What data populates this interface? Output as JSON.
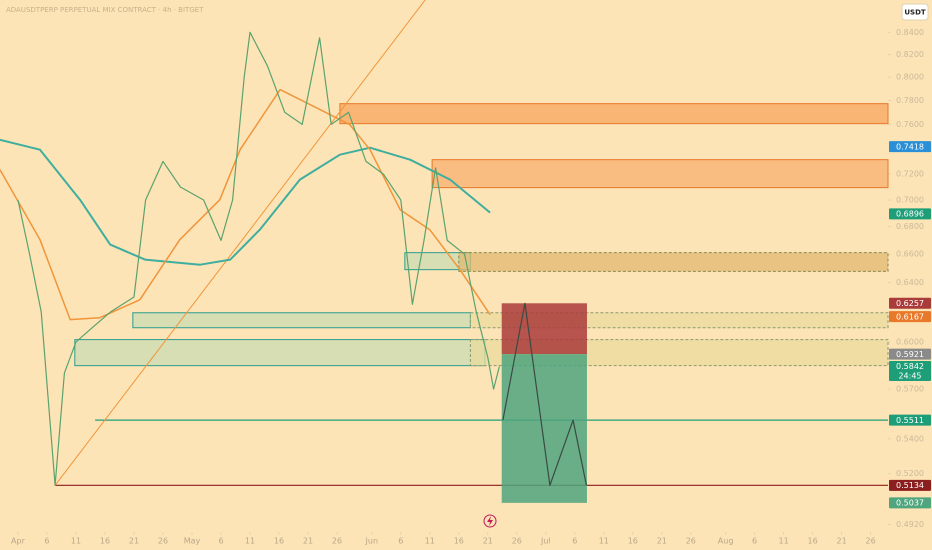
{
  "chart_data": {
    "type": "line",
    "title": "ADAUSDTPERP PERPETUAL MIX CONTRACT · 4h · BITGET",
    "currency": "USDT",
    "log": true,
    "xlim": [
      -3.1,
      150
    ],
    "ylim": [
      0.488,
      0.87
    ],
    "yticks": [
      {
        "value": 0.84,
        "label": "0.8400"
      },
      {
        "value": 0.82,
        "label": "0.8200"
      },
      {
        "value": 0.8,
        "label": "0.8000"
      },
      {
        "value": 0.78,
        "label": "0.7800"
      },
      {
        "value": 0.76,
        "label": "0.7600"
      },
      {
        "value": 0.72,
        "label": "0.7200"
      },
      {
        "value": 0.7,
        "label": "0.7000"
      },
      {
        "value": 0.68,
        "label": "0.6800"
      },
      {
        "value": 0.66,
        "label": "0.6600"
      },
      {
        "value": 0.64,
        "label": "0.6400"
      },
      {
        "value": 0.6,
        "label": "0.6000"
      },
      {
        "value": 0.57,
        "label": "0.5700"
      },
      {
        "value": 0.54,
        "label": "0.5400"
      },
      {
        "value": 0.52,
        "label": "0.5200"
      },
      {
        "value": 0.492,
        "label": "0.4920"
      }
    ],
    "xticks": [
      {
        "value": 0,
        "label": "Apr"
      },
      {
        "value": 5,
        "label": "6"
      },
      {
        "value": 10,
        "label": "11"
      },
      {
        "value": 15,
        "label": "16"
      },
      {
        "value": 20,
        "label": "21"
      },
      {
        "value": 25,
        "label": "26"
      },
      {
        "value": 30,
        "label": "May"
      },
      {
        "value": 35,
        "label": "6"
      },
      {
        "value": 40,
        "label": "11"
      },
      {
        "value": 45,
        "label": "16"
      },
      {
        "value": 50,
        "label": "21"
      },
      {
        "value": 55,
        "label": "26"
      },
      {
        "value": 61,
        "label": "Jun"
      },
      {
        "value": 66,
        "label": "6"
      },
      {
        "value": 71,
        "label": "11"
      },
      {
        "value": 76,
        "label": "16"
      },
      {
        "value": 81,
        "label": "21"
      },
      {
        "value": 86,
        "label": "26"
      },
      {
        "value": 91,
        "label": "Jul"
      },
      {
        "value": 96,
        "label": "6"
      },
      {
        "value": 101,
        "label": "11"
      },
      {
        "value": 106,
        "label": "16"
      },
      {
        "value": 111,
        "label": "21"
      },
      {
        "value": 116,
        "label": "26"
      },
      {
        "value": 122,
        "label": "Aug"
      },
      {
        "value": 127,
        "label": "6"
      },
      {
        "value": 132,
        "label": "11"
      },
      {
        "value": 137,
        "label": "16"
      },
      {
        "value": 142,
        "label": "21"
      },
      {
        "value": 147,
        "label": "26"
      }
    ],
    "zones": [
      {
        "x": [
          55.5,
          150
        ],
        "y": [
          0.7606,
          0.7773
        ],
        "color": "#f7a55c",
        "border": "#e8782a",
        "dashed": false
      },
      {
        "x": [
          71.4,
          150
        ],
        "y": [
          0.7095,
          0.7314
        ],
        "color": "#f7b070",
        "border": "#e8782a",
        "dashed": false
      },
      {
        "x": [
          66.7,
          78
        ],
        "y": [
          0.649,
          0.6611
        ],
        "color": "#c9dcb2",
        "border": "#2a9d8f",
        "dashed": false
      },
      {
        "x": [
          76,
          150
        ],
        "y": [
          0.6478,
          0.6611
        ],
        "color": "#e0b870",
        "border": "#8a8a50",
        "dashed": true
      },
      {
        "x": [
          19.8,
          78
        ],
        "y": [
          0.6093,
          0.6193
        ],
        "color": "#c9dcb2",
        "border": "#2a9d8f",
        "dashed": false
      },
      {
        "x": [
          78,
          150
        ],
        "y": [
          0.6093,
          0.6193
        ],
        "color": "#eadb9e",
        "border": "#8a9a70",
        "dashed": true
      },
      {
        "x": [
          9.8,
          80.5
        ],
        "y": [
          0.5847,
          0.6015
        ],
        "color": "#c9dcb2",
        "border": "#2a9d8f",
        "dashed": false
      },
      {
        "x": [
          78,
          150
        ],
        "y": [
          0.5847,
          0.6015
        ],
        "color": "#eadb9e",
        "border": "#8a9a70",
        "dashed": true
      }
    ],
    "trendline": {
      "x": [
        6.4,
        70.2
      ],
      "values": [
        0.5134,
        0.87
      ],
      "color": "#f0953a"
    },
    "series": [
      {
        "color": "#3fae9f",
        "width": 2,
        "x": [
          -3.1,
          3.8,
          10.7,
          15.9,
          21.9,
          31.4,
          36.6,
          41.7,
          48.6,
          55.5,
          60.7,
          67.6,
          74.5,
          81.4
        ],
        "values": [
          0.7474,
          0.7394,
          0.7003,
          0.6669,
          0.6561,
          0.6525,
          0.6561,
          0.6778,
          0.7157,
          0.7354,
          0.741,
          0.7314,
          0.7157,
          0.6905
        ]
      },
      {
        "color": "#f0953a",
        "width": 1.5,
        "x": [
          -3.1,
          3.8,
          9.0,
          14.1,
          21.0,
          27.9,
          34.8,
          38.3,
          45.2,
          52.1,
          57.2,
          60.7,
          65.9,
          71.0,
          76.2,
          81.4
        ],
        "values": [
          0.7235,
          0.6705,
          0.6147,
          0.616,
          0.6281,
          0.6705,
          0.7003,
          0.7394,
          0.7893,
          0.7722,
          0.7598,
          0.7394,
          0.6927,
          0.6778,
          0.649,
          0.618
        ]
      },
      {
        "color": "#5aa26e",
        "width": 1.2,
        "x": [
          0,
          2,
          4,
          6.4,
          8,
          10,
          13,
          16,
          20,
          22,
          25,
          28,
          32,
          35,
          37,
          39,
          40,
          43,
          46,
          49,
          52,
          54,
          57,
          60,
          63,
          66,
          68,
          70,
          72,
          74,
          77,
          79,
          81,
          82,
          83
        ],
        "values": [
          0.7,
          0.66,
          0.62,
          0.5134,
          0.58,
          0.6,
          0.61,
          0.62,
          0.63,
          0.7,
          0.73,
          0.71,
          0.7,
          0.67,
          0.7,
          0.8,
          0.84,
          0.81,
          0.77,
          0.76,
          0.835,
          0.76,
          0.77,
          0.73,
          0.72,
          0.7,
          0.625,
          0.67,
          0.725,
          0.67,
          0.66,
          0.62,
          0.59,
          0.57,
          0.5842
        ]
      },
      {
        "color": "#3a4a44",
        "width": 1.2,
        "x": [
          83.6,
          87.4,
          91.7,
          95.7,
          98
        ],
        "values": [
          0.5511,
          0.6257,
          0.5134,
          0.5511,
          0.5134
        ]
      }
    ],
    "position": {
      "x": [
        83.4,
        98.1
      ],
      "stop": 0.6257,
      "entry": 0.5921,
      "target": 0.5037,
      "stop_color": "#a93b3b",
      "target_color": "#4fa57e",
      "entry_color": "#8a8a8a"
    },
    "price_labels": [
      {
        "value": 0.7418,
        "color": "#2a8fd6"
      },
      {
        "value": 0.6896,
        "color": "#1e9e78"
      },
      {
        "value": 0.6167,
        "color": "#e8782a"
      },
      {
        "value": 0.5842,
        "color": "#1e9e78",
        "countdown": "24:45"
      },
      {
        "value": 0.5511,
        "color": "#1e9e78",
        "line_from": 13.3
      },
      {
        "value": 0.5134,
        "color": "#8b1e1e",
        "line_from": 6.4
      }
    ]
  }
}
